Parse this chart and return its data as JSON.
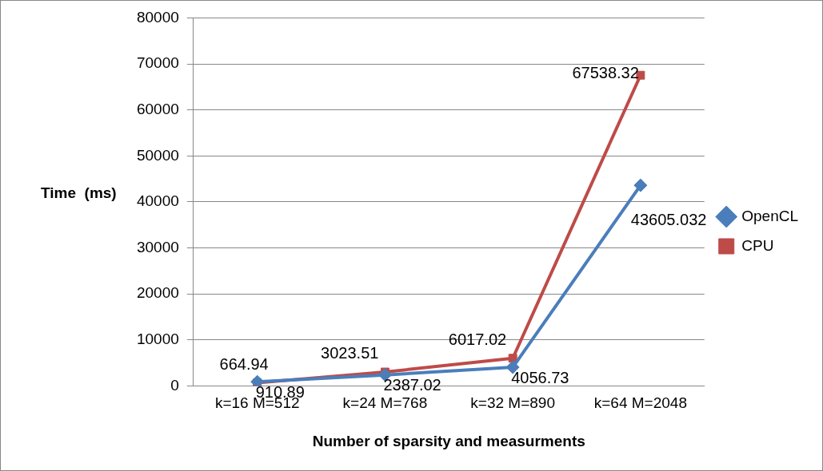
{
  "chart_data": {
    "type": "line",
    "xlabel": "Number of sparsity and measurments",
    "ylabel": "Time  (ms)",
    "categories": [
      "k=16 M=512",
      "k=24 M=768",
      "k=32 M=890",
      "k=64 M=2048"
    ],
    "series": [
      {
        "name": "OpenCL",
        "color": "#4a7ebb",
        "marker": "diamond",
        "values": [
          910.89,
          2387.02,
          4056.73,
          43605.032
        ]
      },
      {
        "name": "CPU",
        "color": "#be4b48",
        "marker": "square",
        "values": [
          664.94,
          3023.51,
          6017.02,
          67538.32
        ]
      }
    ],
    "ylim": [
      0,
      80000
    ],
    "yticks": [
      0,
      10000,
      20000,
      30000,
      40000,
      50000,
      60000,
      70000,
      80000
    ],
    "grid": "y",
    "legend": "right",
    "data_labels": true
  }
}
